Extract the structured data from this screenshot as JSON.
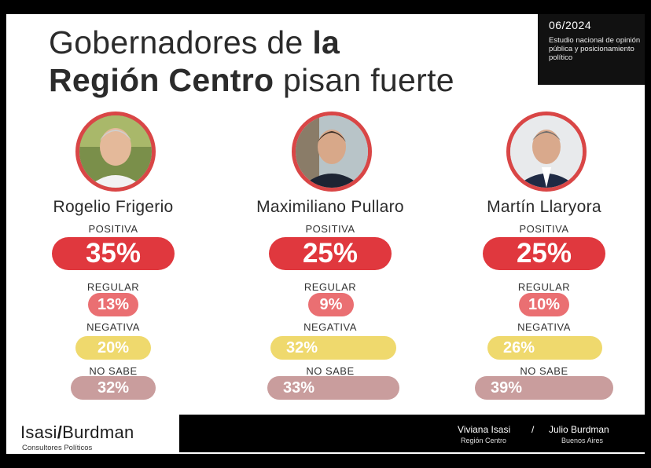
{
  "header": {
    "title_line1_normal": "Gobernadores de ",
    "title_line1_bold": "la",
    "title_line2_bold": "Región Centro",
    "title_line2_normal": " pisan fuerte",
    "date": "06/2024",
    "description": "Estudio nacional de opinión pública y posicionamiento político"
  },
  "colors": {
    "positiva": "#e0383e",
    "regular": "#ea6f72",
    "negativa": "#efd96d",
    "no_sabe": "#c99d9d",
    "avatar_border": "#d94646"
  },
  "chart_data": {
    "type": "table",
    "categories": [
      "POSITIVA",
      "REGULAR",
      "NEGATIVA",
      "NO SABE"
    ],
    "series": [
      {
        "name": "Rogelio Frigerio",
        "values": [
          35,
          13,
          20,
          32
        ],
        "labels": [
          "35%",
          "13%",
          "20%",
          "32%"
        ]
      },
      {
        "name": "Maximiliano Pullaro",
        "values": [
          25,
          9,
          32,
          33
        ],
        "labels": [
          "25%",
          "9%",
          "32%",
          "33%"
        ]
      },
      {
        "name": "Martín Llaryora",
        "values": [
          25,
          10,
          26,
          39
        ],
        "labels": [
          "25%",
          "10%",
          "26%",
          "39%"
        ]
      }
    ]
  },
  "footer": {
    "brand_left": "Isasi",
    "brand_sep": "/",
    "brand_right": "Burdman",
    "brand_sub": "Consultores Políticos",
    "author1": "Viviana Isasi",
    "author1_region": "Región Centro",
    "separator": "/",
    "author2": "Julio Burdman",
    "author2_region": "Buenos Aires"
  }
}
